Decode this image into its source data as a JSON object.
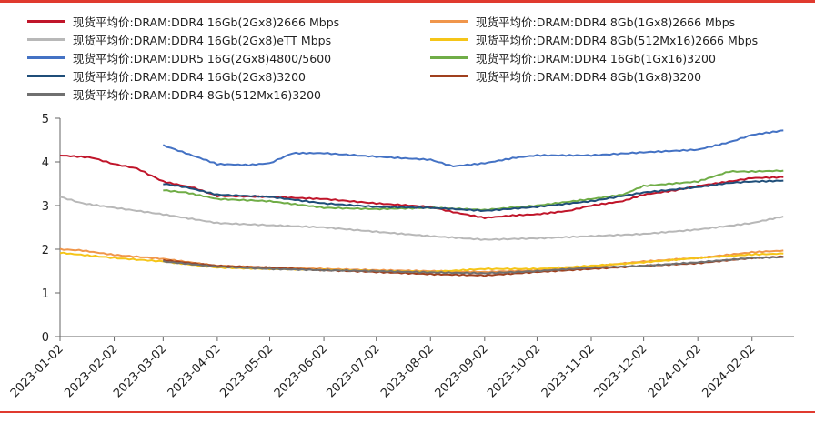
{
  "chart_data": {
    "type": "line",
    "xlabel": "",
    "ylabel": "",
    "ylim": [
      0,
      5
    ],
    "yticks": [
      "0",
      "1",
      "2",
      "3",
      "4",
      "5"
    ],
    "xticks": [
      "2023-01-02",
      "2023-02-02",
      "2023-03-02",
      "2023-04-02",
      "2023-05-02",
      "2023-06-02",
      "2023-07-02",
      "2023-08-02",
      "2023-09-02",
      "2023-10-02",
      "2023-11-02",
      "2023-12-02",
      "2024-01-02",
      "2024-02-02"
    ],
    "grid": false,
    "legend": "top",
    "series": [
      {
        "name": "现货平均价:DRAM:DDR4 16Gb(2Gx8)2666 Mbps",
        "color": "#c0152a",
        "points": [
          [
            "2023-01-02",
            4.15
          ],
          [
            "2023-01-20",
            4.1
          ],
          [
            "2023-02-02",
            3.95
          ],
          [
            "2023-02-15",
            3.85
          ],
          [
            "2023-03-02",
            3.55
          ],
          [
            "2023-03-20",
            3.4
          ],
          [
            "2023-04-02",
            3.22
          ],
          [
            "2023-05-02",
            3.2
          ],
          [
            "2023-06-02",
            3.15
          ],
          [
            "2023-07-02",
            3.05
          ],
          [
            "2023-08-02",
            2.97
          ],
          [
            "2023-08-15",
            2.85
          ],
          [
            "2023-09-02",
            2.72
          ],
          [
            "2023-09-20",
            2.78
          ],
          [
            "2023-10-02",
            2.8
          ],
          [
            "2023-10-20",
            2.88
          ],
          [
            "2023-11-02",
            3.0
          ],
          [
            "2023-11-20",
            3.1
          ],
          [
            "2023-12-02",
            3.25
          ],
          [
            "2023-12-20",
            3.35
          ],
          [
            "2024-01-02",
            3.45
          ],
          [
            "2024-01-20",
            3.55
          ],
          [
            "2024-02-02",
            3.63
          ],
          [
            "2024-02-20",
            3.65
          ]
        ]
      },
      {
        "name": "现货平均价:DRAM:DDR4 8Gb(1Gx8)2666 Mbps",
        "color": "#f0964b",
        "points": [
          [
            "2023-01-02",
            2.0
          ],
          [
            "2023-01-15",
            1.97
          ],
          [
            "2023-02-02",
            1.87
          ],
          [
            "2023-03-02",
            1.78
          ],
          [
            "2023-04-02",
            1.62
          ],
          [
            "2023-05-02",
            1.58
          ],
          [
            "2023-06-02",
            1.55
          ],
          [
            "2023-07-02",
            1.52
          ],
          [
            "2023-08-02",
            1.5
          ],
          [
            "2023-09-02",
            1.48
          ],
          [
            "2023-10-02",
            1.52
          ],
          [
            "2023-11-02",
            1.6
          ],
          [
            "2023-12-02",
            1.72
          ],
          [
            "2024-01-02",
            1.8
          ],
          [
            "2024-02-02",
            1.93
          ],
          [
            "2024-02-20",
            1.97
          ]
        ]
      },
      {
        "name": "现货平均价:DRAM:DDR4 16Gb(2Gx8)eTT Mbps",
        "color": "#b8b8b8",
        "points": [
          [
            "2023-01-02",
            3.2
          ],
          [
            "2023-01-15",
            3.05
          ],
          [
            "2023-02-02",
            2.95
          ],
          [
            "2023-03-02",
            2.8
          ],
          [
            "2023-04-02",
            2.6
          ],
          [
            "2023-05-02",
            2.55
          ],
          [
            "2023-06-02",
            2.5
          ],
          [
            "2023-07-02",
            2.4
          ],
          [
            "2023-08-02",
            2.3
          ],
          [
            "2023-09-02",
            2.22
          ],
          [
            "2023-10-02",
            2.25
          ],
          [
            "2023-11-02",
            2.3
          ],
          [
            "2023-12-02",
            2.35
          ],
          [
            "2024-01-02",
            2.45
          ],
          [
            "2024-02-02",
            2.6
          ],
          [
            "2024-02-20",
            2.75
          ]
        ]
      },
      {
        "name": "现货平均价:DRAM:DDR4 8Gb(512Mx16)2666 Mbps",
        "color": "#f5c518",
        "points": [
          [
            "2023-01-02",
            1.92
          ],
          [
            "2023-01-20",
            1.85
          ],
          [
            "2023-02-02",
            1.8
          ],
          [
            "2023-03-02",
            1.72
          ],
          [
            "2023-04-02",
            1.58
          ],
          [
            "2023-05-02",
            1.55
          ],
          [
            "2023-06-02",
            1.53
          ],
          [
            "2023-07-02",
            1.5
          ],
          [
            "2023-08-02",
            1.48
          ],
          [
            "2023-09-02",
            1.55
          ],
          [
            "2023-10-02",
            1.55
          ],
          [
            "2023-11-02",
            1.62
          ],
          [
            "2023-12-02",
            1.7
          ],
          [
            "2024-01-02",
            1.8
          ],
          [
            "2024-02-02",
            1.88
          ],
          [
            "2024-02-20",
            1.9
          ]
        ]
      },
      {
        "name": "现货平均价:DRAM:DDR5 16G(2Gx8)4800/5600",
        "color": "#4472c4",
        "points": [
          [
            "2023-03-02",
            4.38
          ],
          [
            "2023-03-15",
            4.2
          ],
          [
            "2023-04-02",
            3.95
          ],
          [
            "2023-04-20",
            3.93
          ],
          [
            "2023-05-02",
            3.97
          ],
          [
            "2023-05-15",
            4.2
          ],
          [
            "2023-06-02",
            4.2
          ],
          [
            "2023-07-02",
            4.12
          ],
          [
            "2023-08-02",
            4.05
          ],
          [
            "2023-08-15",
            3.9
          ],
          [
            "2023-09-02",
            3.97
          ],
          [
            "2023-09-20",
            4.1
          ],
          [
            "2023-10-02",
            4.15
          ],
          [
            "2023-11-02",
            4.15
          ],
          [
            "2023-12-02",
            4.22
          ],
          [
            "2024-01-02",
            4.28
          ],
          [
            "2024-01-20",
            4.45
          ],
          [
            "2024-02-02",
            4.62
          ],
          [
            "2024-02-20",
            4.72
          ]
        ]
      },
      {
        "name": "现货平均价:DRAM:DDR4 16Gb(1Gx16)3200",
        "color": "#70ad47",
        "points": [
          [
            "2023-03-02",
            3.35
          ],
          [
            "2023-03-15",
            3.3
          ],
          [
            "2023-04-02",
            3.15
          ],
          [
            "2023-05-02",
            3.1
          ],
          [
            "2023-06-02",
            2.95
          ],
          [
            "2023-07-02",
            2.92
          ],
          [
            "2023-08-02",
            2.95
          ],
          [
            "2023-09-02",
            2.9
          ],
          [
            "2023-10-02",
            3.0
          ],
          [
            "2023-11-02",
            3.15
          ],
          [
            "2023-11-20",
            3.25
          ],
          [
            "2023-12-02",
            3.45
          ],
          [
            "2024-01-02",
            3.55
          ],
          [
            "2024-01-20",
            3.78
          ],
          [
            "2024-02-02",
            3.78
          ],
          [
            "2024-02-20",
            3.8
          ]
        ]
      },
      {
        "name": "现货平均价:DRAM:DDR4 16Gb(2Gx8)3200",
        "color": "#1f4e79",
        "points": [
          [
            "2023-03-02",
            3.5
          ],
          [
            "2023-03-15",
            3.42
          ],
          [
            "2023-04-02",
            3.25
          ],
          [
            "2023-05-02",
            3.2
          ],
          [
            "2023-06-02",
            3.05
          ],
          [
            "2023-07-02",
            2.97
          ],
          [
            "2023-08-02",
            2.95
          ],
          [
            "2023-09-02",
            2.88
          ],
          [
            "2023-10-02",
            2.97
          ],
          [
            "2023-11-02",
            3.1
          ],
          [
            "2023-12-02",
            3.3
          ],
          [
            "2024-01-02",
            3.42
          ],
          [
            "2024-01-20",
            3.52
          ],
          [
            "2024-02-02",
            3.55
          ],
          [
            "2024-02-20",
            3.57
          ]
        ]
      },
      {
        "name": "现货平均价:DRAM:DDR4 8Gb(1Gx8)3200",
        "color": "#a0401e",
        "points": [
          [
            "2023-03-02",
            1.75
          ],
          [
            "2023-04-02",
            1.62
          ],
          [
            "2023-05-02",
            1.58
          ],
          [
            "2023-06-02",
            1.52
          ],
          [
            "2023-07-02",
            1.48
          ],
          [
            "2023-08-02",
            1.43
          ],
          [
            "2023-09-02",
            1.4
          ],
          [
            "2023-10-02",
            1.48
          ],
          [
            "2023-11-02",
            1.55
          ],
          [
            "2023-12-02",
            1.62
          ],
          [
            "2024-01-02",
            1.68
          ],
          [
            "2024-02-02",
            1.8
          ],
          [
            "2024-02-20",
            1.83
          ]
        ]
      },
      {
        "name": "现货平均价:DRAM:DDR4 8Gb(512Mx16)3200",
        "color": "#707070",
        "points": [
          [
            "2023-03-02",
            1.72
          ],
          [
            "2023-04-02",
            1.6
          ],
          [
            "2023-05-02",
            1.55
          ],
          [
            "2023-06-02",
            1.52
          ],
          [
            "2023-07-02",
            1.5
          ],
          [
            "2023-08-02",
            1.47
          ],
          [
            "2023-09-02",
            1.45
          ],
          [
            "2023-10-02",
            1.5
          ],
          [
            "2023-11-02",
            1.58
          ],
          [
            "2023-12-02",
            1.62
          ],
          [
            "2024-01-02",
            1.7
          ],
          [
            "2024-02-02",
            1.8
          ],
          [
            "2024-02-20",
            1.82
          ]
        ]
      }
    ]
  }
}
